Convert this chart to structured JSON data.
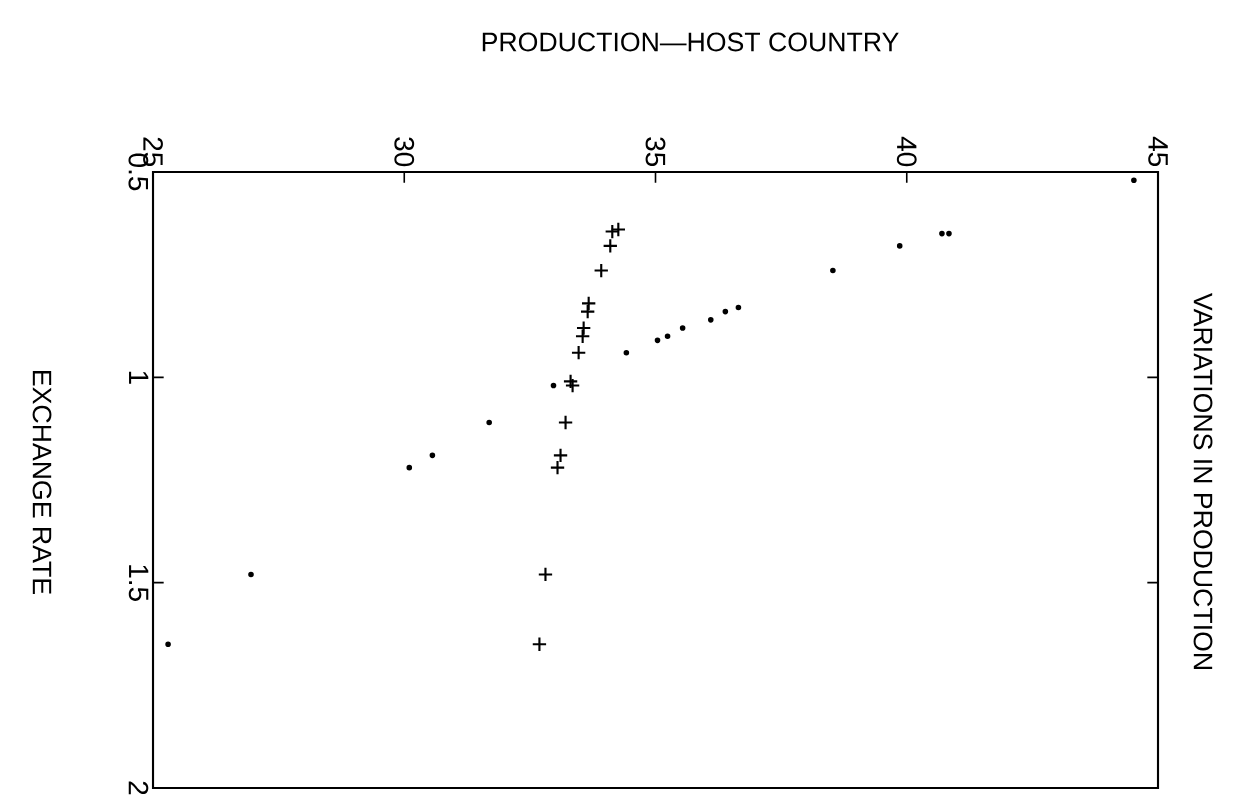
{
  "chart_data": {
    "type": "scatter",
    "title": "VARIATIONS IN PRODUCTION",
    "xlabel": "PRODUCTION—HOST COUNTRY",
    "ylabel": "EXCHANGE RATE",
    "xlim": [
      25,
      45
    ],
    "ylim": [
      2,
      0.5
    ],
    "xticks": [
      25,
      30,
      35,
      40,
      45
    ],
    "yticks": [
      0.5,
      1,
      1.5,
      2
    ],
    "series": [
      {
        "color": "#000000",
        "marker": "cross",
        "x": [
          34.26,
          34.14,
          34.1,
          33.92,
          33.67,
          33.65,
          33.57,
          33.55,
          33.47,
          33.31,
          33.35,
          33.21,
          33.11,
          33.05,
          32.81,
          32.69
        ],
        "values": [
          0.64,
          0.645,
          0.68,
          0.74,
          0.82,
          0.84,
          0.88,
          0.9,
          0.94,
          1.01,
          1.02,
          1.11,
          1.19,
          1.22,
          1.48,
          1.65
        ]
      },
      {
        "color": "#000000",
        "marker": "circle",
        "x": [
          44.52,
          40.84,
          40.7,
          39.86,
          38.53,
          36.65,
          36.39,
          36.1,
          35.54,
          35.24,
          35.04,
          34.42,
          32.97,
          31.69,
          30.56,
          30.1,
          26.95,
          25.3
        ],
        "values": [
          0.52,
          0.65,
          0.65,
          0.68,
          0.74,
          0.83,
          0.84,
          0.86,
          0.88,
          0.9,
          0.91,
          0.94,
          1.02,
          1.11,
          1.19,
          1.22,
          1.48,
          1.65
        ]
      }
    ]
  }
}
